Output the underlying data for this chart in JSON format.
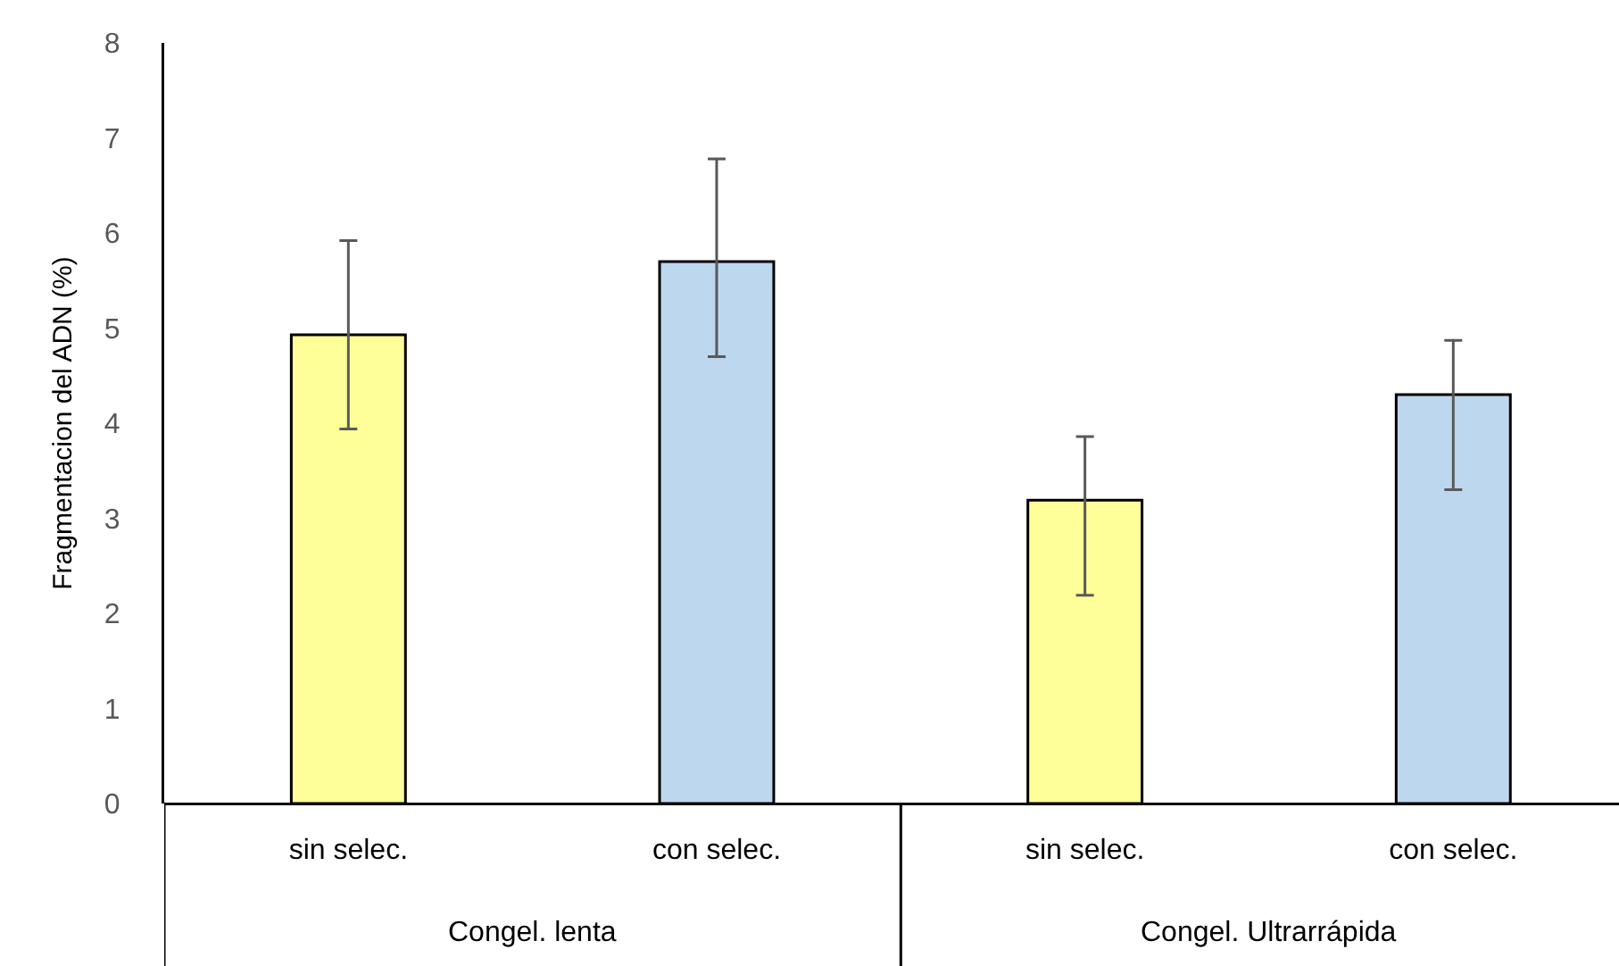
{
  "chart_data": {
    "type": "bar",
    "ylabel": "Fragmentacion del ADN (%)",
    "categories": [
      "sin selec.",
      "con selec.",
      "sin selec.",
      "con selec."
    ],
    "values": [
      4.93,
      5.7,
      3.19,
      4.3
    ],
    "colors": [
      "#ffff99",
      "#bdd7ee",
      "#ffff99",
      "#bdd7ee"
    ],
    "errors": [
      [
        3.94,
        5.92
      ],
      [
        4.7,
        6.78
      ],
      [
        2.19,
        3.86
      ],
      [
        3.3,
        4.87
      ]
    ],
    "ylim": [
      0,
      8
    ],
    "yticks": [
      0,
      1,
      2,
      3,
      4,
      5,
      6,
      7,
      8
    ],
    "grid": false,
    "legend": false,
    "annotations": [
      "Congel. lenta",
      "Congel. Ultrarrápida"
    ]
  }
}
